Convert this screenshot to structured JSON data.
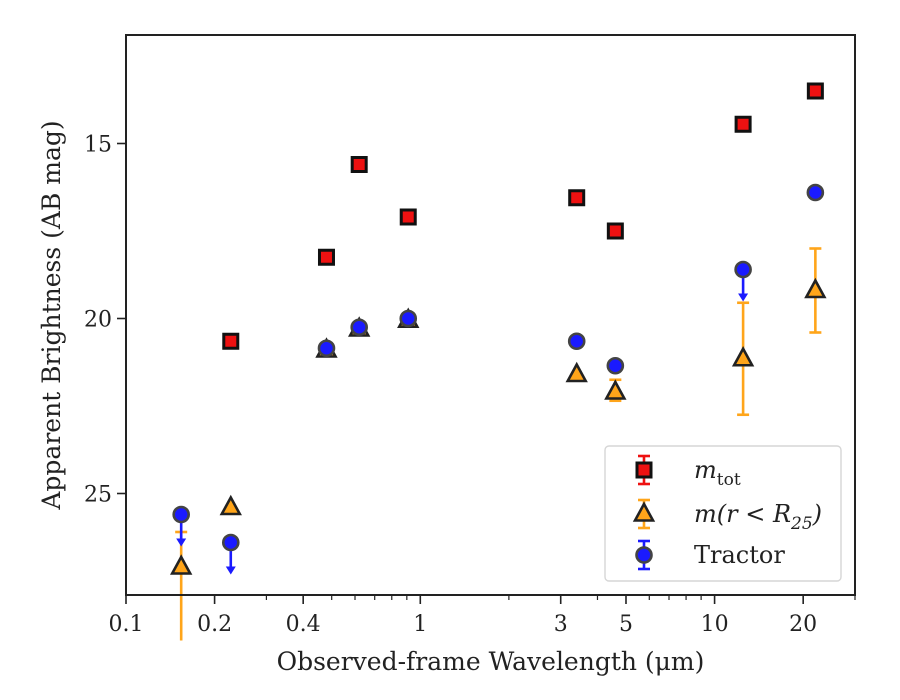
{
  "chart_data": {
    "type": "scatter",
    "title": "",
    "xlabel": "Observed-frame Wavelength (μm)",
    "ylabel": "Apparent Brightness (AB mag)",
    "xscale": "log",
    "xlim": [
      0.1,
      30
    ],
    "ylim": [
      27.9,
      11.9
    ],
    "y_inverted": true,
    "x_ticks": [
      {
        "value": 0.1,
        "label": "0.1"
      },
      {
        "value": 0.2,
        "label": "0.2"
      },
      {
        "value": 0.4,
        "label": "0.4"
      },
      {
        "value": 1,
        "label": "1"
      },
      {
        "value": 3,
        "label": "3"
      },
      {
        "value": 5,
        "label": "5"
      },
      {
        "value": 10,
        "label": "10"
      },
      {
        "value": 20,
        "label": "20"
      }
    ],
    "y_ticks": [
      {
        "value": 15,
        "label": "15"
      },
      {
        "value": 20,
        "label": "20"
      },
      {
        "value": 25,
        "label": "25"
      }
    ],
    "grid": false,
    "legend_position": "bottom-right",
    "series": [
      {
        "name": "m_tot",
        "legend_main": "m",
        "legend_sub": "tot",
        "marker": "square",
        "color": "#ee1111",
        "points": [
          {
            "x": 0.227,
            "y": 20.65
          },
          {
            "x": 0.48,
            "y": 18.25
          },
          {
            "x": 0.62,
            "y": 15.6
          },
          {
            "x": 0.91,
            "y": 17.1
          },
          {
            "x": 3.4,
            "y": 16.55
          },
          {
            "x": 4.6,
            "y": 17.5
          },
          {
            "x": 12.5,
            "y": 14.45
          },
          {
            "x": 22.0,
            "y": 13.5
          }
        ]
      },
      {
        "name": "m(r < R25)",
        "legend_main": "m(r < R",
        "legend_sub": "25",
        "legend_tail": ")",
        "marker": "triangle",
        "color": "#ffa51a",
        "points": [
          {
            "x": 0.154,
            "y": 27.1,
            "err_low": 2.1,
            "err_high": 1.0
          },
          {
            "x": 0.227,
            "y": 25.4
          },
          {
            "x": 0.48,
            "y": 20.9
          },
          {
            "x": 0.62,
            "y": 20.3
          },
          {
            "x": 0.91,
            "y": 20.05
          },
          {
            "x": 3.4,
            "y": 21.6
          },
          {
            "x": 4.6,
            "y": 22.1,
            "err_low": 0.25,
            "err_high": 0.35
          },
          {
            "x": 12.5,
            "y": 21.15,
            "err_low": 1.6,
            "err_high": 1.6
          },
          {
            "x": 22.0,
            "y": 19.2,
            "err_low": 1.2,
            "err_high": 1.2
          }
        ]
      },
      {
        "name": "Tractor",
        "legend_main": "Tractor",
        "marker": "circle",
        "color": "#1a1aff",
        "points": [
          {
            "x": 0.154,
            "y": 25.6,
            "upper_limit": true
          },
          {
            "x": 0.227,
            "y": 26.4,
            "upper_limit": true
          },
          {
            "x": 0.48,
            "y": 20.85
          },
          {
            "x": 0.62,
            "y": 20.25
          },
          {
            "x": 0.91,
            "y": 20.0
          },
          {
            "x": 3.4,
            "y": 20.65
          },
          {
            "x": 4.6,
            "y": 21.35
          },
          {
            "x": 12.5,
            "y": 18.6,
            "upper_limit": true
          },
          {
            "x": 22.0,
            "y": 16.4
          }
        ]
      }
    ]
  }
}
